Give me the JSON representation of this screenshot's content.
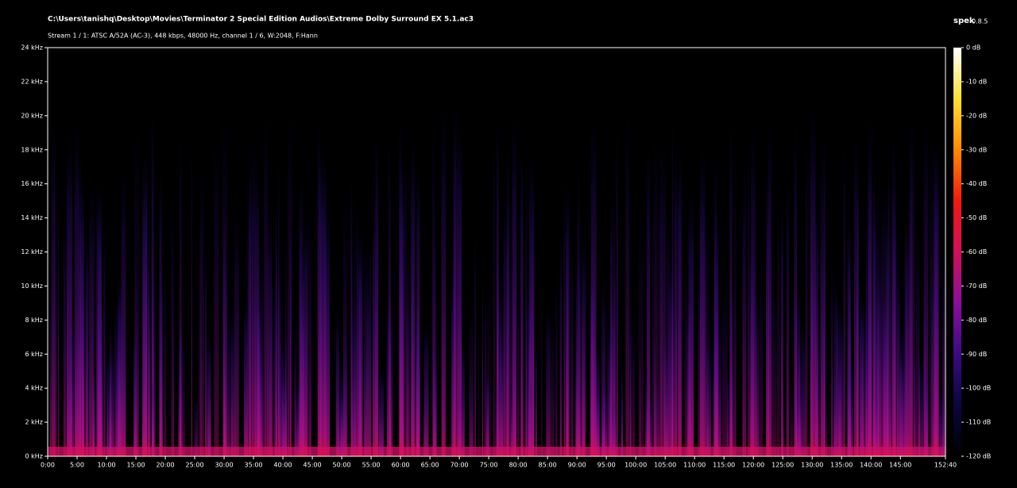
{
  "chart_data": {
    "type": "spectrogram",
    "title": "C:\\Users\\tanishq\\Desktop\\Movies\\Terminator 2 Special Edition Audios\\Extreme Dolby Surround EX 5.1.ac3",
    "subtitle": "Stream 1 / 1: ATSC A/52A (AC-3), 448 kbps, 48000 Hz, channel 1 / 6, W:2048, F:Hann",
    "app": "spek",
    "version": "0.8.5",
    "xlim": [
      0,
      9160
    ],
    "xticks": [
      {
        "value": 0,
        "label": "0:00"
      },
      {
        "value": 300,
        "label": "5:00"
      },
      {
        "value": 600,
        "label": "10:00"
      },
      {
        "value": 900,
        "label": "15:00"
      },
      {
        "value": 1200,
        "label": "20:00"
      },
      {
        "value": 1500,
        "label": "25:00"
      },
      {
        "value": 1800,
        "label": "30:00"
      },
      {
        "value": 2100,
        "label": "35:00"
      },
      {
        "value": 2400,
        "label": "40:00"
      },
      {
        "value": 2700,
        "label": "45:00"
      },
      {
        "value": 3000,
        "label": "50:00"
      },
      {
        "value": 3300,
        "label": "55:00"
      },
      {
        "value": 3600,
        "label": "60:00"
      },
      {
        "value": 3900,
        "label": "65:00"
      },
      {
        "value": 4200,
        "label": "70:00"
      },
      {
        "value": 4500,
        "label": "75:00"
      },
      {
        "value": 4800,
        "label": "80:00"
      },
      {
        "value": 5100,
        "label": "85:00"
      },
      {
        "value": 5400,
        "label": "90:00"
      },
      {
        "value": 5700,
        "label": "95:00"
      },
      {
        "value": 6000,
        "label": "100:00"
      },
      {
        "value": 6300,
        "label": "105:00"
      },
      {
        "value": 6600,
        "label": "110:00"
      },
      {
        "value": 6900,
        "label": "115:00"
      },
      {
        "value": 7200,
        "label": "120:00"
      },
      {
        "value": 7500,
        "label": "125:00"
      },
      {
        "value": 7800,
        "label": "130:00"
      },
      {
        "value": 8100,
        "label": "135:00"
      },
      {
        "value": 8400,
        "label": "140:00"
      },
      {
        "value": 8700,
        "label": "145:00"
      },
      {
        "value": 9160,
        "label": "152:40"
      }
    ],
    "ylim": [
      0,
      24
    ],
    "yticks": [
      {
        "value": 0,
        "label": "0 kHz"
      },
      {
        "value": 2,
        "label": "2 kHz"
      },
      {
        "value": 4,
        "label": "4 kHz"
      },
      {
        "value": 6,
        "label": "6 kHz"
      },
      {
        "value": 8,
        "label": "8 kHz"
      },
      {
        "value": 10,
        "label": "10 kHz"
      },
      {
        "value": 12,
        "label": "12 kHz"
      },
      {
        "value": 14,
        "label": "14 kHz"
      },
      {
        "value": 16,
        "label": "16 kHz"
      },
      {
        "value": 18,
        "label": "18 kHz"
      },
      {
        "value": 20,
        "label": "20 kHz"
      },
      {
        "value": 22,
        "label": "22 kHz"
      },
      {
        "value": 24,
        "label": "24 kHz"
      }
    ],
    "clim": [
      -120,
      0
    ],
    "cticks": [
      {
        "value": 0,
        "label": "0 dB"
      },
      {
        "value": -10,
        "label": "-10 dB"
      },
      {
        "value": -20,
        "label": "-20 dB"
      },
      {
        "value": -30,
        "label": "-30 dB"
      },
      {
        "value": -40,
        "label": "-40 dB"
      },
      {
        "value": -50,
        "label": "-50 dB"
      },
      {
        "value": -60,
        "label": "-60 dB"
      },
      {
        "value": -70,
        "label": "-70 dB"
      },
      {
        "value": -80,
        "label": "-80 dB"
      },
      {
        "value": -90,
        "label": "-90 dB"
      },
      {
        "value": -100,
        "label": "-100 dB"
      },
      {
        "value": -110,
        "label": "-110 dB"
      },
      {
        "value": -120,
        "label": "-120 dB"
      }
    ],
    "colormap": [
      "#000000",
      "#0a0640",
      "#3a0b80",
      "#8a0f9a",
      "#d0105a",
      "#f01a10",
      "#ff8a00",
      "#ffe030",
      "#ffffff"
    ]
  }
}
